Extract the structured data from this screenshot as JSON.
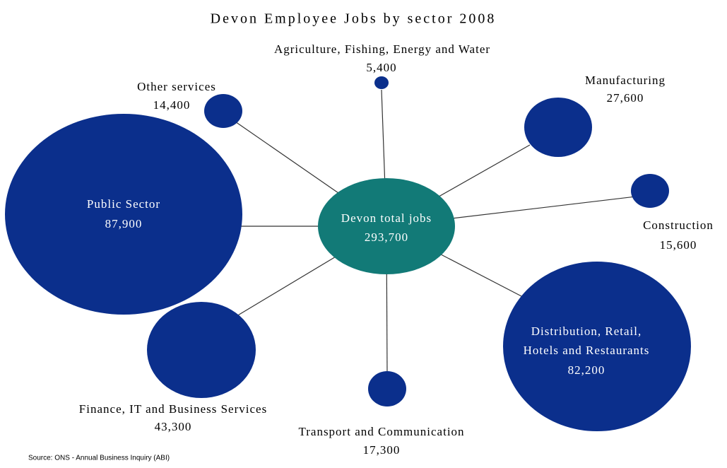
{
  "title": "Devon Employee Jobs by sector 2008",
  "center": {
    "label": "Devon total jobs",
    "value": "293,700"
  },
  "nodes": [
    {
      "label": "Public Sector",
      "value": "87,900"
    },
    {
      "label": "Other services",
      "value": "14,400"
    },
    {
      "label": "Agriculture, Fishing, Energy and Water",
      "value": "5,400"
    },
    {
      "label": "Manufacturing",
      "value": "27,600"
    },
    {
      "label": "Construction",
      "value": "15,600"
    },
    {
      "label": [
        "Distribution, Retail,",
        "Hotels and Restaurants"
      ],
      "value": "82,200"
    },
    {
      "label": "Transport and Communication",
      "value": "17,300"
    },
    {
      "label": "Finance, IT and Business Services",
      "value": "43,300"
    }
  ],
  "source": "Source: ONS - Annual Business Inquiry (ABI)"
}
